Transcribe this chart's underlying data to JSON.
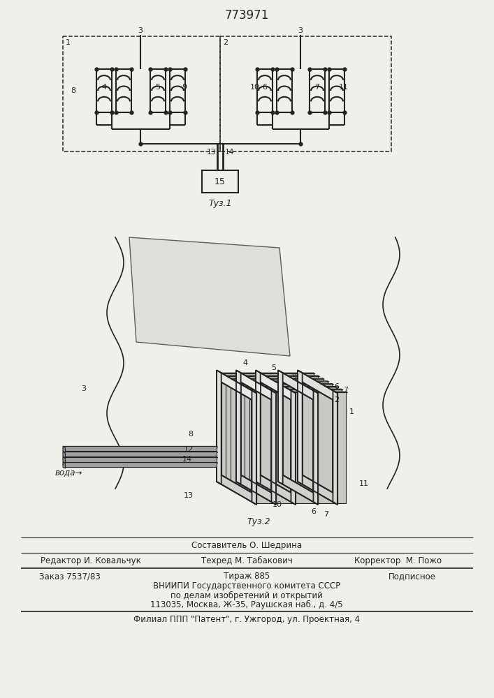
{
  "patent_number": "773971",
  "bg_color": "#f0f0eb",
  "line_color": "#222222",
  "fig1_label": "Τуз.1",
  "fig2_label": "Τуз.2",
  "footer": {
    "sostavitel": "Составитель О. Шедрина",
    "redaktor": "Редактор И. Ковальчук",
    "tehred": "Техред М. Табакович",
    "korrektor": "Корректор  М. Пожо",
    "zakaz": "Заказ 7537/83",
    "tirazh": "Тираж 885",
    "podpisnoe": "Подписное",
    "vniipii1": "ВНИИПИ Государственного комитета СССР",
    "vniipii2": "по делам изобретений и открытий",
    "address": "113035, Москва, Ж-35, Раушская наб., д. 4/5",
    "filial": "Филиал ППП \"Патент\", г. Ужгород, ул. Проектная, 4"
  }
}
